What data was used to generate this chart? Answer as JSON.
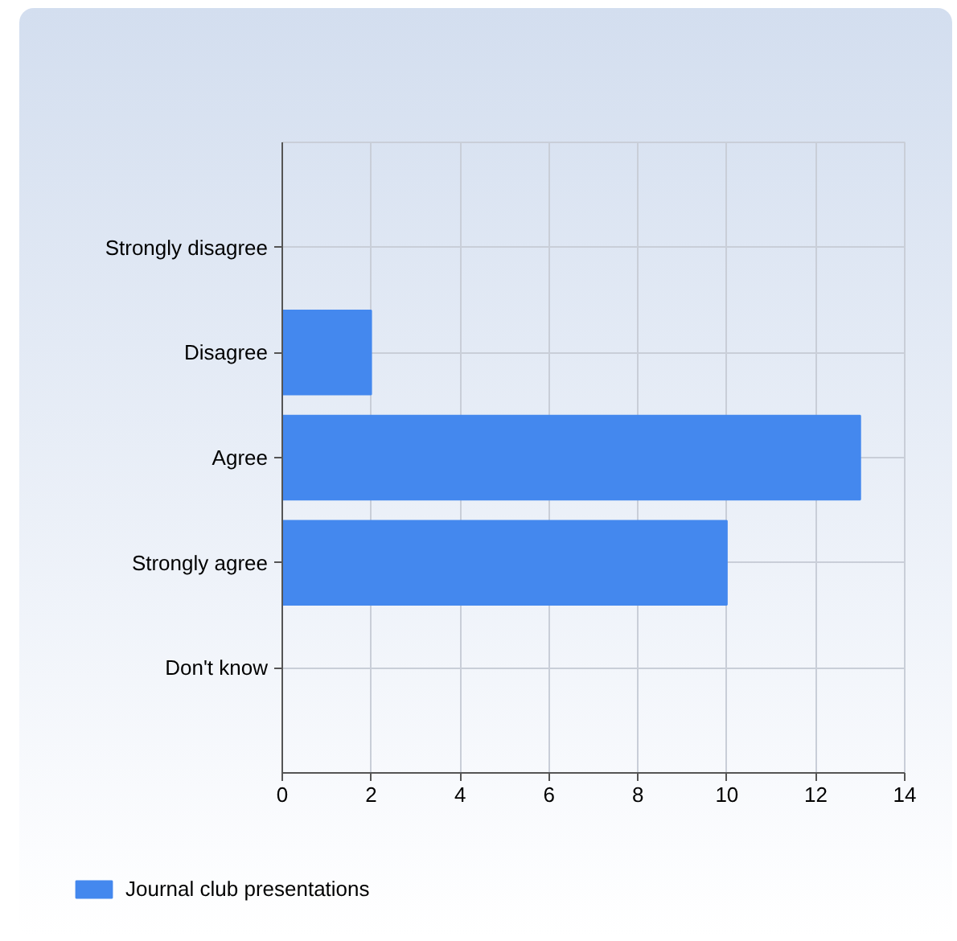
{
  "chart_data": {
    "type": "bar",
    "orientation": "horizontal",
    "categories": [
      "Strongly disagree",
      "Disagree",
      "Agree",
      "Strongly agree",
      "Don't know"
    ],
    "series": [
      {
        "name": "Journal club presentations",
        "color": "#4488ee",
        "values": [
          0,
          2,
          13,
          10,
          0
        ]
      }
    ],
    "xlim": [
      0,
      14
    ],
    "xticks": [
      0,
      2,
      4,
      6,
      8,
      10,
      12,
      14
    ],
    "grid": true,
    "legend": "bottom left"
  }
}
